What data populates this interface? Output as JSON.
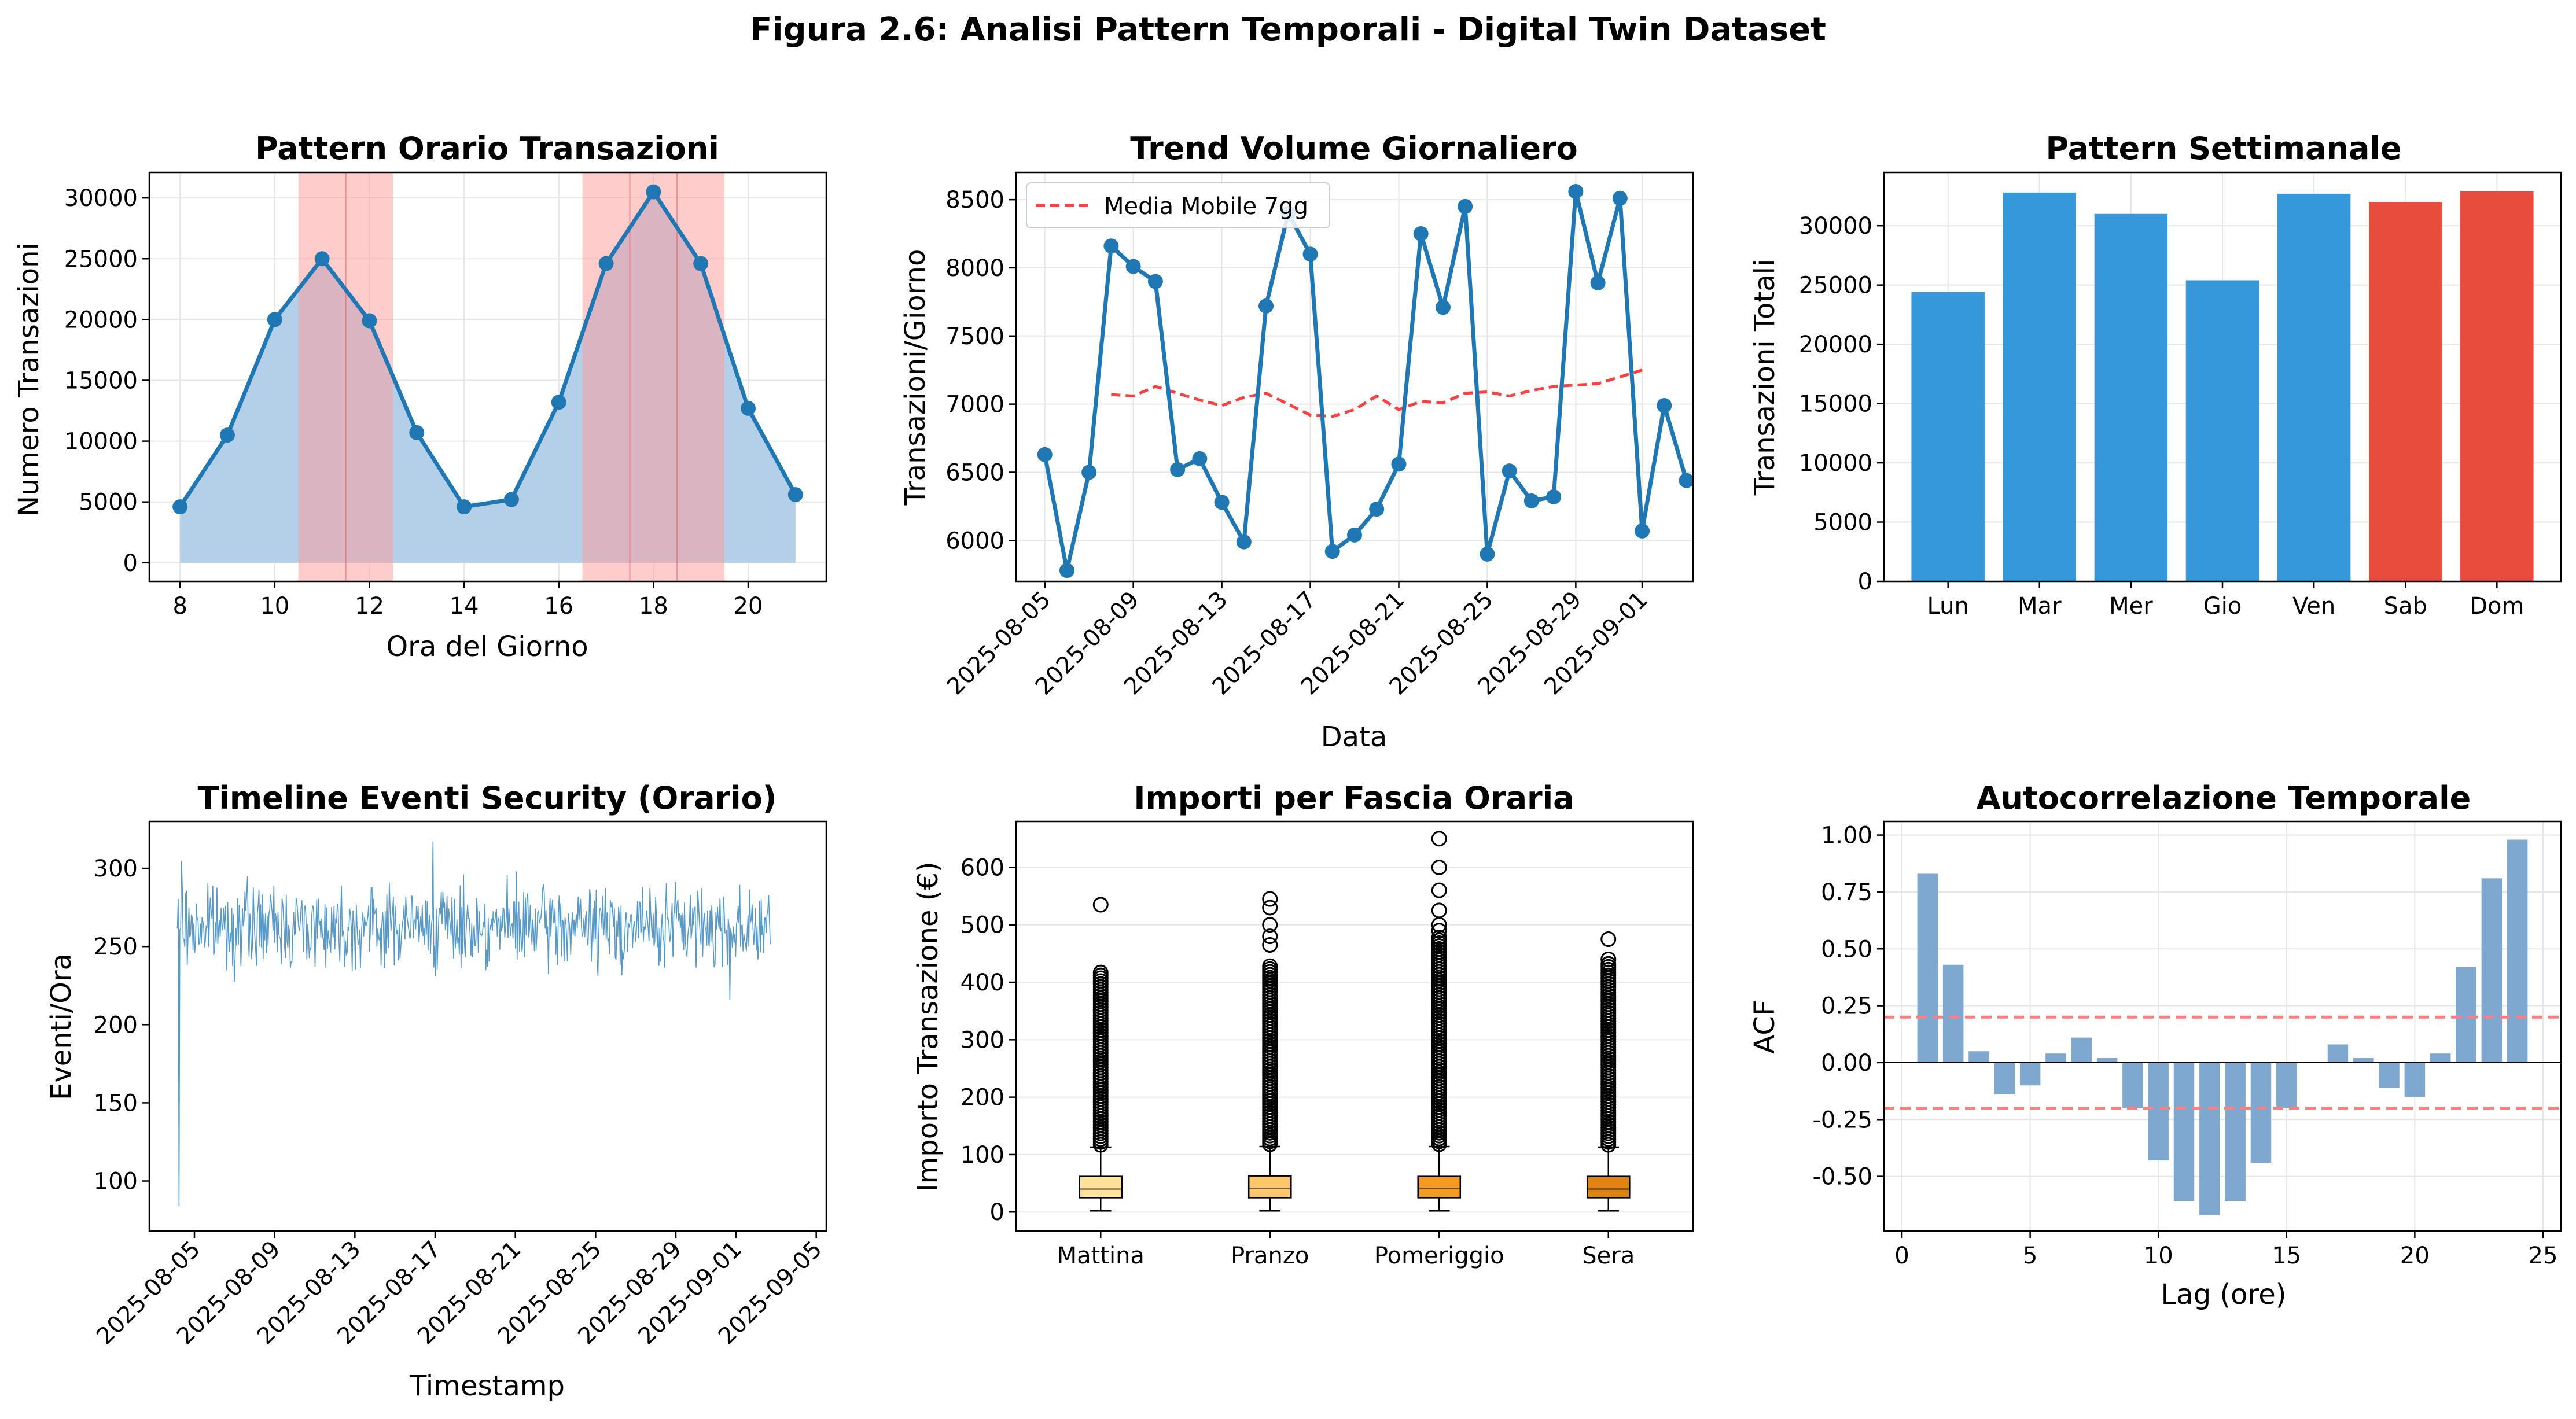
{
  "figure_title": "Figura 2.6: Analisi Pattern Temporali - Digital Twin Dataset",
  "colors": {
    "line_blue": "#1f77b4",
    "fill_blue": "#b4d0e8",
    "peak_red": "#ff9999",
    "weekday_blue": "#3498db",
    "weekend_red": "#e74c3c",
    "moving_avg": "#ff4040",
    "acf_bar": "#7ea8cf",
    "conf_line": "#ff7f7f",
    "grid": "#e6e6e6"
  },
  "chart_data": [
    {
      "type": "line",
      "title": "Pattern Orario Transazioni",
      "xlabel": "Ora del Giorno",
      "ylabel": "Numero Transazioni",
      "xlim": [
        7.35,
        21.65
      ],
      "ylim": [
        -1530,
        32100
      ],
      "xticks": [
        8,
        10,
        12,
        14,
        16,
        18,
        20
      ],
      "yticks": [
        0,
        5000,
        10000,
        15000,
        20000,
        25000,
        30000
      ],
      "x": [
        8,
        9,
        10,
        11,
        12,
        13,
        14,
        15,
        16,
        17,
        18,
        19,
        20,
        21
      ],
      "y": [
        4600,
        10500,
        20000,
        25000,
        19900,
        10700,
        4600,
        5200,
        13200,
        24600,
        30500,
        24600,
        12700,
        5600
      ],
      "fill_under": true,
      "peak_bands": [
        [
          10.5,
          12.5
        ],
        [
          16.5,
          19.5
        ]
      ],
      "band_lines": [
        11.5,
        17.5,
        18.5
      ],
      "grid": true
    },
    {
      "type": "line",
      "title": "Trend Volume Giornaliero",
      "xlabel": "Data",
      "ylabel": "Transazioni/Giorno",
      "xlim": [
        -1.3,
        29.3
      ],
      "ylim": [
        5700,
        8700
      ],
      "xticks": [
        "2025-08-05",
        "2025-08-09",
        "2025-08-13",
        "2025-08-17",
        "2025-08-21",
        "2025-08-25",
        "2025-08-29",
        "2025-09-01"
      ],
      "yticks": [
        6000,
        6500,
        7000,
        7500,
        8000,
        8500
      ],
      "start_date": "2025-08-05",
      "series": [
        {
          "values": [
            6630,
            5780,
            6500,
            8160,
            8010,
            7900,
            6520,
            6600,
            6280,
            5990,
            7720,
            8400,
            8100,
            5920,
            6040,
            6230,
            6560,
            8250,
            7710,
            8450,
            5900,
            6510,
            6290,
            6320,
            8560,
            7890,
            8510,
            6070,
            6990,
            6440
          ]
        },
        {
          "name": "Media Mobile 7gg",
          "start_index": 3,
          "values": [
            7070,
            7060,
            7130,
            7080,
            7030,
            6990,
            7050,
            7080,
            7000,
            6920,
            6910,
            6960,
            7060,
            6960,
            7020,
            7010,
            7080,
            7090,
            7060,
            7100,
            7130,
            7140,
            7150,
            7200,
            7250
          ]
        }
      ],
      "legend": "top-left",
      "grid": true
    },
    {
      "type": "bar",
      "title": "Pattern Settimanale",
      "ylabel": "Transazioni Totali",
      "ylim": [
        0,
        34500
      ],
      "yticks": [
        0,
        5000,
        10000,
        15000,
        20000,
        25000,
        30000
      ],
      "categories": [
        "Lun",
        "Mar",
        "Mer",
        "Gio",
        "Ven",
        "Sab",
        "Dom"
      ],
      "values": [
        24400,
        32800,
        31000,
        25400,
        32700,
        32000,
        32900
      ],
      "weekend": [
        false,
        false,
        false,
        false,
        false,
        true,
        true
      ],
      "grid": true
    },
    {
      "type": "line",
      "title": "Timeline Eventi Security (Orario)",
      "xlabel": "Timestamp",
      "ylabel": "Eventi/Ora",
      "xlim": [
        -1.25,
        32.5
      ],
      "ylim": [
        68,
        330
      ],
      "xticks": [
        "2025-08-05",
        "2025-08-09",
        "2025-08-13",
        "2025-08-17",
        "2025-08-21",
        "2025-08-25",
        "2025-08-29",
        "2025-09-01",
        "2025-09-05"
      ],
      "yticks": [
        100,
        150,
        200,
        250,
        300
      ],
      "start_date": "2025-08-04",
      "mean": 263,
      "amplitude": 22,
      "grid": false
    },
    {
      "type": "box",
      "title": "Importi per Fascia Oraria",
      "ylabel": "Importo Transazione (€)",
      "ylim": [
        -33,
        680
      ],
      "yticks": [
        0,
        100,
        200,
        300,
        400,
        500,
        600
      ],
      "categories": [
        "Mattina",
        "Pranzo",
        "Pomeriggio",
        "Sera"
      ],
      "boxes": [
        {
          "whislo": 2,
          "q1": 25,
          "med": 40,
          "q3": 62,
          "whishi": 113,
          "flier_top": 420,
          "max_outliers": [
            535
          ]
        },
        {
          "whislo": 2,
          "q1": 25,
          "med": 41,
          "q3": 63,
          "whishi": 114,
          "flier_top": 430,
          "max_outliers": [
            465,
            480,
            500,
            530,
            545
          ]
        },
        {
          "whislo": 2,
          "q1": 25,
          "med": 41,
          "q3": 62,
          "whishi": 114,
          "flier_top": 480,
          "max_outliers": [
            490,
            500,
            525,
            560,
            600,
            650
          ]
        },
        {
          "whislo": 2,
          "q1": 25,
          "med": 40,
          "q3": 62,
          "whishi": 113,
          "flier_top": 435,
          "max_outliers": [
            440,
            475
          ]
        }
      ],
      "box_colors": [
        "#ffe199",
        "#ffc96b",
        "#f59b1f",
        "#e0830f"
      ],
      "grid": true
    },
    {
      "type": "bar",
      "title": "Autocorrelazione Temporale",
      "xlabel": "Lag (ore)",
      "ylabel": "ACF",
      "xlim": [
        -0.7,
        25.7
      ],
      "ylim": [
        -0.74,
        1.06
      ],
      "xticks": [
        0,
        5,
        10,
        15,
        20,
        25
      ],
      "yticks": [
        -0.5,
        -0.25,
        0.0,
        0.25,
        0.5,
        0.75,
        1.0
      ],
      "x": [
        1,
        2,
        3,
        4,
        5,
        6,
        7,
        8,
        9,
        10,
        11,
        12,
        13,
        14,
        15,
        16,
        17,
        18,
        19,
        20,
        21,
        22,
        23,
        24
      ],
      "values": [
        0.83,
        0.43,
        0.05,
        -0.14,
        -0.1,
        0.04,
        0.11,
        0.02,
        -0.2,
        -0.43,
        -0.61,
        -0.67,
        -0.61,
        -0.44,
        -0.2,
        0.0,
        0.08,
        0.02,
        -0.11,
        -0.15,
        0.04,
        0.42,
        0.81,
        0.98
      ],
      "conf_bounds": [
        0.2,
        -0.2
      ],
      "grid": true
    }
  ]
}
